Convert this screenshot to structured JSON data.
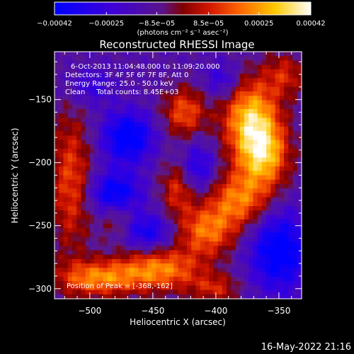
{
  "chart_data": {
    "type": "heatmap",
    "title": "Reconstructed RHESSI Image",
    "xlabel": "Heliocentric X (arcsec)",
    "ylabel": "Heliocentric Y (arcsec)",
    "xlim": [
      -528,
      -332
    ],
    "ylim": [
      -308,
      -112
    ],
    "x_ticks": [
      -500,
      -450,
      -400,
      -350
    ],
    "x_tick_labels": [
      "−500",
      "−450",
      "−400",
      "−350"
    ],
    "y_ticks": [
      -150,
      -200,
      -250,
      -300
    ],
    "y_tick_labels": [
      "−150",
      "−200",
      "−250",
      "−300"
    ],
    "colorbar": {
      "min": -0.00042,
      "max": 0.00042,
      "ticks": [
        -0.00042,
        -0.00025,
        -8.5e-05,
        8.5e-05,
        0.00025,
        0.00042
      ],
      "tick_labels": [
        "−0.00042",
        "−0.00025",
        "−8.5e−05",
        "8.5e−05",
        "0.00025",
        "0.00042"
      ],
      "unit_label": "(photons cm⁻² s⁻¹ asec⁻²)"
    },
    "annotations": {
      "time": "6-Oct-2013 11:04:48.000 to 11:09:20.000",
      "detectors": "Detectors: 3F 4F 5F 6F 7F 8F, Att 0",
      "energy": "Energy Range: 25.0 - 50.0 keV",
      "clean": "Clean     Total counts: 8.45E+03",
      "peak": "Position of Peak = [-368,-162]"
    },
    "peak_position": [
      -368,
      -162
    ],
    "sources": [
      {
        "x": -372,
        "y": -165,
        "sx": 16,
        "sy": 22,
        "amp": 1.0
      },
      {
        "x": -362,
        "y": -195,
        "sx": 14,
        "sy": 18,
        "amp": 0.85
      },
      {
        "x": -382,
        "y": -230,
        "sx": 18,
        "sy": 16,
        "amp": 0.75
      },
      {
        "x": -408,
        "y": -255,
        "sx": 16,
        "sy": 14,
        "amp": 0.7
      },
      {
        "x": -425,
        "y": -160,
        "sx": 12,
        "sy": 14,
        "amp": 0.65
      },
      {
        "x": -445,
        "y": -285,
        "sx": 24,
        "sy": 12,
        "amp": 0.8
      },
      {
        "x": -495,
        "y": -292,
        "sx": 22,
        "sy": 10,
        "amp": 0.75
      },
      {
        "x": -515,
        "y": -215,
        "sx": 12,
        "sy": 40,
        "amp": 0.6
      },
      {
        "x": -430,
        "y": -220,
        "sx": 10,
        "sy": 16,
        "amp": 0.55
      },
      {
        "x": -345,
        "y": -130,
        "sx": 12,
        "sy": 12,
        "amp": 0.45
      },
      {
        "x": -400,
        "y": -300,
        "sx": 14,
        "sy": 8,
        "amp": 0.45
      },
      {
        "x": -478,
        "y": -245,
        "sx": 10,
        "sy": 12,
        "amp": 0.4
      },
      {
        "x": -470,
        "y": -180,
        "sx": 14,
        "sy": 14,
        "amp": -0.85
      },
      {
        "x": -480,
        "y": -225,
        "sx": 14,
        "sy": 12,
        "amp": -0.8
      },
      {
        "x": -455,
        "y": -255,
        "sx": 14,
        "sy": 10,
        "amp": -0.6
      },
      {
        "x": -415,
        "y": -205,
        "sx": 10,
        "sy": 14,
        "amp": -0.55
      },
      {
        "x": -350,
        "y": -270,
        "sx": 16,
        "sy": 22,
        "amp": -0.85
      },
      {
        "x": -395,
        "y": -135,
        "sx": 10,
        "sy": 10,
        "amp": -0.4
      },
      {
        "x": -500,
        "y": -140,
        "sx": 12,
        "sy": 10,
        "amp": -0.35
      }
    ]
  },
  "footer": {
    "date": "16-May-2022 21:16"
  }
}
